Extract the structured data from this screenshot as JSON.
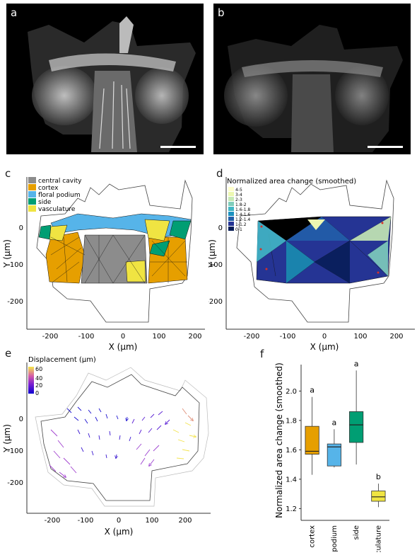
{
  "panels": {
    "a": {
      "letter": "a"
    },
    "b": {
      "letter": "b"
    },
    "c": {
      "letter": "c",
      "legend": [
        "central cavity",
        "cortex",
        "floral podium",
        "side",
        "vasculature"
      ],
      "legend_colors": [
        "#8c8c8c",
        "#e69f00",
        "#56b4e9",
        "#009e73",
        "#f0e442"
      ],
      "xlabel": "X (µm)",
      "ylabel": "Y (µm)",
      "xticks": [
        "-200",
        "-100",
        "0",
        "100",
        "200"
      ],
      "yticks": [
        "0",
        "-100",
        "-200"
      ]
    },
    "d": {
      "letter": "d",
      "legend_title": "Normalized area change (smoothed)",
      "legend": [
        "4-5",
        "3-4",
        "2-3",
        "1.8-2",
        "1.6-1.8",
        "1.4-1.6",
        "1.2-1.4",
        "1-1.2",
        "0-1"
      ],
      "legend_colors": [
        "#ffffcc",
        "#edf8b1",
        "#c7e9b4",
        "#7fcdbb",
        "#41b6c4",
        "#1d91c0",
        "#225ea8",
        "#253494",
        "#081d58"
      ],
      "xlabel": "X (µm)",
      "ylabel": "Y (µm)",
      "xticks": [
        "-200",
        "-100",
        "0",
        "100",
        "200"
      ],
      "yticks": [
        "0",
        "-100",
        "-200"
      ]
    },
    "e": {
      "letter": "e",
      "legend_title": "Displacement (µm)",
      "legend_ticks": [
        "60",
        "40",
        "20",
        "0"
      ],
      "xlabel": "X (µm)",
      "ylabel": "Y (µm)",
      "xticks": [
        "-200",
        "-100",
        "0",
        "100",
        "200"
      ],
      "yticks": [
        "0",
        "-100",
        "-200"
      ]
    },
    "f": {
      "letter": "f"
    }
  },
  "chart_data": [
    {
      "type": "boxplot",
      "panel": "f",
      "ylabel": "Normalized area change (smoothed)",
      "categories": [
        "cortex",
        "floral podium",
        "side",
        "vasculature"
      ],
      "colors": [
        "#e69f00",
        "#56b4e9",
        "#009e73",
        "#f0e442"
      ],
      "ylim": [
        1.12,
        2.18
      ],
      "yticks": [
        "1.2",
        "1.4",
        "1.6",
        "1.8",
        "2.0"
      ],
      "boxes": [
        {
          "category": "cortex",
          "q1": 1.57,
          "median": 1.59,
          "q3": 1.76,
          "whisker_low": 1.43,
          "whisker_high": 1.96,
          "letter": "a"
        },
        {
          "category": "floral podium",
          "q1": 1.49,
          "median": 1.62,
          "q3": 1.64,
          "whisker_low": 1.48,
          "whisker_high": 1.74,
          "letter": "a"
        },
        {
          "category": "side",
          "q1": 1.65,
          "median": 1.77,
          "q3": 1.86,
          "whisker_low": 1.5,
          "whisker_high": 2.14,
          "letter": "a"
        },
        {
          "category": "vasculature",
          "q1": 1.25,
          "median": 1.28,
          "q3": 1.32,
          "whisker_low": 1.21,
          "whisker_high": 1.37,
          "letter": "b"
        }
      ]
    }
  ]
}
